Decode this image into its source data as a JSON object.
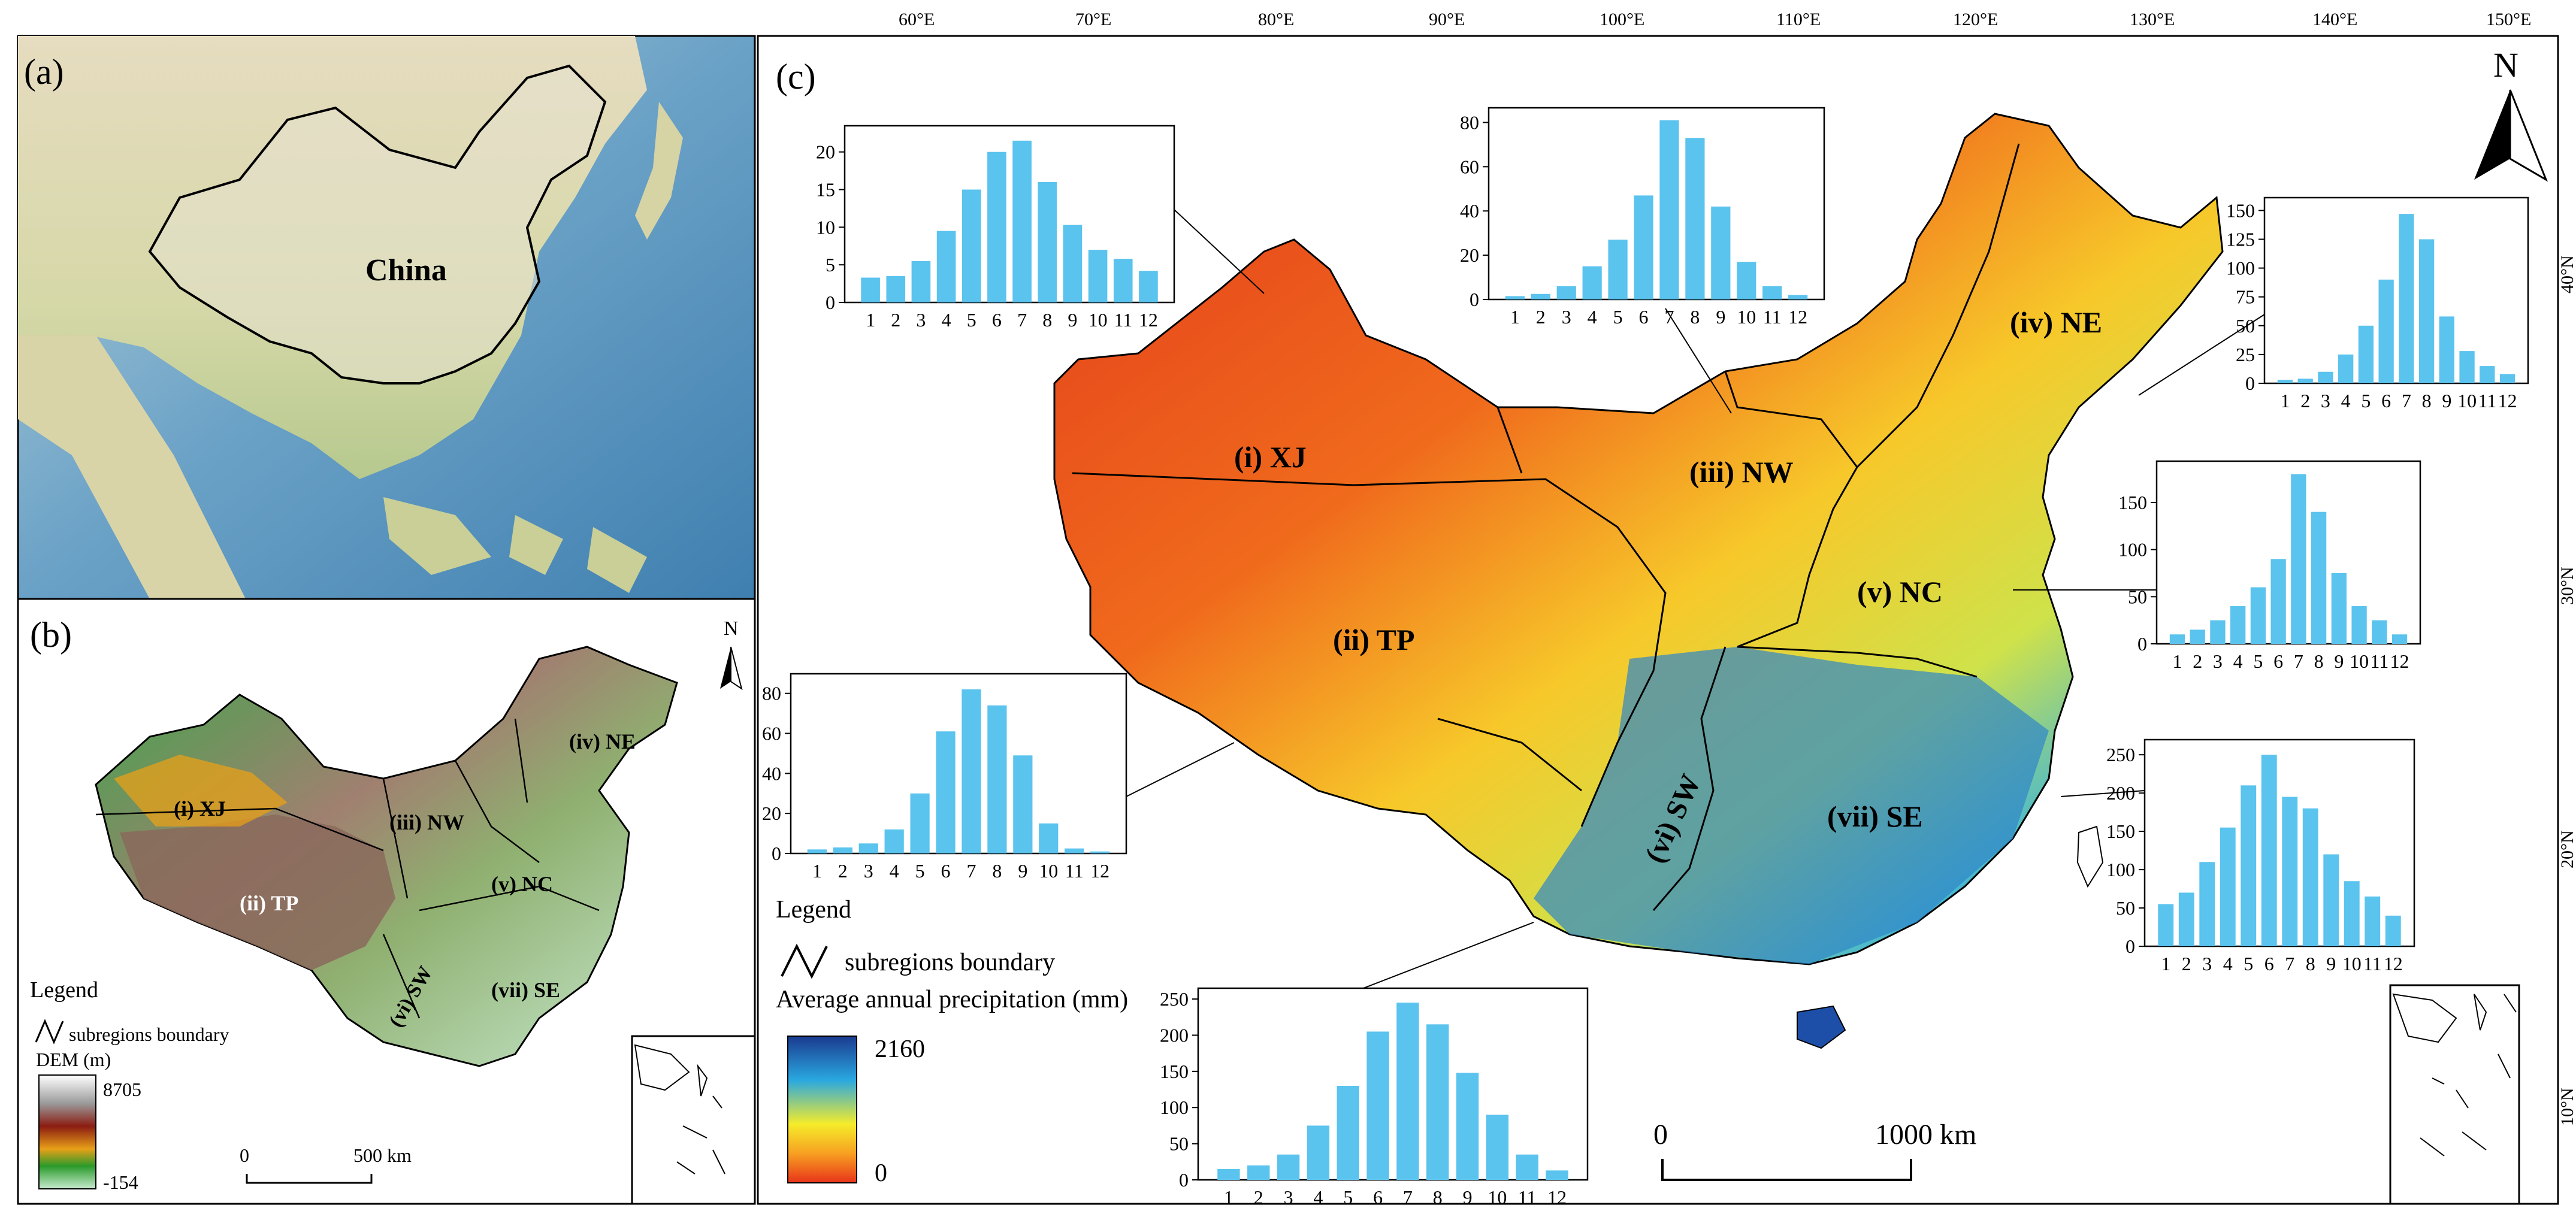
{
  "panels": {
    "a": {
      "label": "(a)",
      "country_label": "China"
    },
    "b": {
      "label": "(b)",
      "north": "N",
      "region_labels": [
        "(i) XJ",
        "(ii) TP",
        "(iii) NW",
        "(iv) NE",
        "(v) NC",
        "(vi) SW",
        "(vii) SE"
      ],
      "legend_title": "Legend",
      "boundary_label": "subregions boundary",
      "dem_label": "DEM (m)",
      "dem_max": "8705",
      "dem_min": "-154",
      "scale_start": "0",
      "scale_end": "500 km"
    },
    "c": {
      "label": "(c)",
      "north": "N",
      "lon_ticks": [
        "60°E",
        "70°E",
        "80°E",
        "90°E",
        "100°E",
        "110°E",
        "120°E",
        "130°E",
        "140°E",
        "150°E"
      ],
      "lat_ticks": [
        "40°N",
        "30°N",
        "20°N",
        "10°N"
      ],
      "region_labels": [
        "(i) XJ",
        "(ii) TP",
        "(iii) NW",
        "(iv) NE",
        "(v) NC",
        "(vi) SW",
        "(vii) SE"
      ],
      "legend_title": "Legend",
      "boundary_label": "subregions boundary",
      "precip_label": "Average annual precipitation (mm)",
      "precip_max": "2160",
      "precip_min": "0",
      "scale_start": "0",
      "scale_end": "1000  km"
    }
  },
  "colors": {
    "bar": "#5ac3ee",
    "precip_high": "#1a3a8f",
    "precip_mid": "#f5ec2a",
    "precip_low": "#e8341a"
  },
  "chart_data": [
    {
      "type": "bar",
      "region": "(i) XJ",
      "categories": [
        "1",
        "2",
        "3",
        "4",
        "5",
        "6",
        "7",
        "8",
        "9",
        "10",
        "11",
        "12"
      ],
      "values": [
        3.3,
        3.5,
        5.5,
        9.5,
        15,
        20,
        21.5,
        16,
        10.3,
        7,
        5.8,
        4.2
      ],
      "yticks": [
        "0",
        "5",
        "10",
        "15",
        "20"
      ],
      "ylim": [
        0,
        23
      ]
    },
    {
      "type": "bar",
      "region": "(iii) NW",
      "categories": [
        "1",
        "2",
        "3",
        "4",
        "5",
        "6",
        "7",
        "8",
        "9",
        "10",
        "11",
        "12"
      ],
      "values": [
        1.5,
        2.5,
        6,
        15,
        27,
        47,
        81,
        73,
        42,
        17,
        6,
        2
      ],
      "yticks": [
        "0",
        "20",
        "40",
        "60",
        "80"
      ],
      "ylim": [
        0,
        85
      ]
    },
    {
      "type": "bar",
      "region": "(iv) NE",
      "categories": [
        "1",
        "2",
        "3",
        "4",
        "5",
        "6",
        "7",
        "8",
        "9",
        "10",
        "11",
        "12"
      ],
      "values": [
        3,
        4,
        10,
        25,
        50,
        90,
        147,
        125,
        58,
        28,
        15,
        8
      ],
      "yticks": [
        "0",
        "25",
        "50",
        "75",
        "100",
        "125",
        "150"
      ],
      "ylim": [
        0,
        158
      ]
    },
    {
      "type": "bar",
      "region": "(v) NC",
      "categories": [
        "1",
        "2",
        "3",
        "4",
        "5",
        "6",
        "7",
        "8",
        "9",
        "10",
        "11",
        "12"
      ],
      "values": [
        10,
        15,
        25,
        40,
        60,
        90,
        180,
        140,
        75,
        40,
        25,
        10
      ],
      "yticks": [
        "0",
        "50",
        "100",
        "150"
      ],
      "ylim": [
        0,
        190
      ]
    },
    {
      "type": "bar",
      "region": "(vii) SE",
      "categories": [
        "1",
        "2",
        "3",
        "4",
        "5",
        "6",
        "7",
        "8",
        "9",
        "10",
        "11",
        "12"
      ],
      "values": [
        55,
        70,
        110,
        155,
        210,
        250,
        195,
        180,
        120,
        85,
        65,
        40
      ],
      "yticks": [
        "0",
        "50",
        "100",
        "150",
        "200",
        "250"
      ],
      "ylim": [
        0,
        265
      ]
    },
    {
      "type": "bar",
      "region": "(vi) SW",
      "categories": [
        "1",
        "2",
        "3",
        "4",
        "5",
        "6",
        "7",
        "8",
        "9",
        "10",
        "11",
        "12"
      ],
      "values": [
        15,
        20,
        35,
        75,
        130,
        205,
        245,
        215,
        148,
        90,
        35,
        13
      ],
      "yticks": [
        "0",
        "50",
        "100",
        "150",
        "200",
        "250"
      ],
      "ylim": [
        0,
        260
      ]
    },
    {
      "type": "bar",
      "region": "(ii) TP",
      "categories": [
        "1",
        "2",
        "3",
        "4",
        "5",
        "6",
        "7",
        "8",
        "9",
        "10",
        "11",
        "12"
      ],
      "values": [
        2,
        3,
        5,
        12,
        30,
        61,
        82,
        74,
        49,
        15,
        2.5,
        1
      ],
      "yticks": [
        "0",
        "20",
        "40",
        "60",
        "80"
      ],
      "ylim": [
        0,
        88
      ]
    }
  ]
}
